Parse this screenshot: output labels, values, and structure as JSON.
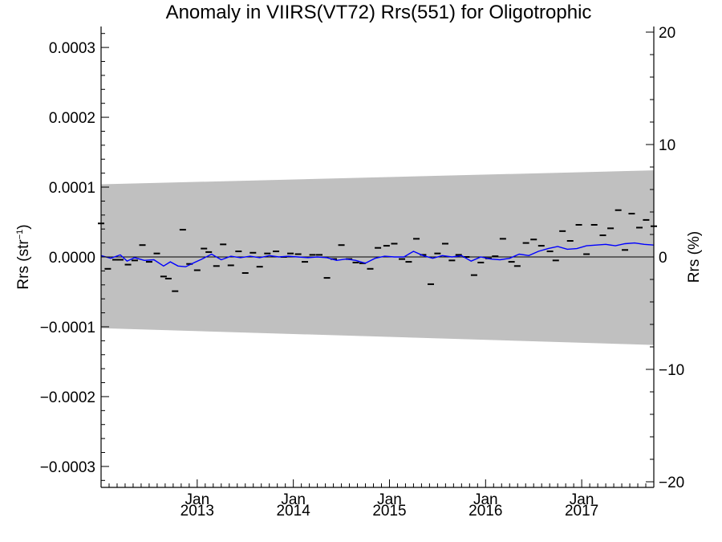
{
  "chart_data": {
    "type": "scatter",
    "title": "Anomaly in VIIRS(VT72) Rrs(551) for Oligotrophic",
    "ylabel_left": {
      "text": "Rrs (str",
      "sup": "−1",
      "close": ")"
    },
    "ylabel_right": "Rrs (%)",
    "xlim": [
      2012.0,
      2017.75
    ],
    "ylim_left": [
      -0.00033,
      0.00033
    ],
    "ylim_right": [
      -20.5,
      20.5
    ],
    "left_ticks": [
      {
        "value": 0.0003,
        "label": "0.0003"
      },
      {
        "value": 0.0002,
        "label": "0.0002"
      },
      {
        "value": 0.0001,
        "label": "0.0001"
      },
      {
        "value": 0.0,
        "label": "0.0000"
      },
      {
        "value": -0.0001,
        "label": "−0.0001"
      },
      {
        "value": -0.0002,
        "label": "−0.0002"
      },
      {
        "value": -0.0003,
        "label": "−0.0003"
      }
    ],
    "right_ticks": [
      {
        "value": 20,
        "label": "20"
      },
      {
        "value": 10,
        "label": "10"
      },
      {
        "value": 0,
        "label": "0"
      },
      {
        "value": -10,
        "label": "−10"
      },
      {
        "value": -20,
        "label": "−20"
      }
    ],
    "x_ticks": [
      {
        "value": 2013.0,
        "month": "Jan",
        "year": "2013"
      },
      {
        "value": 2014.0,
        "month": "Jan",
        "year": "2014"
      },
      {
        "value": 2015.0,
        "month": "Jan",
        "year": "2015"
      },
      {
        "value": 2016.0,
        "month": "Jan",
        "year": "2016"
      },
      {
        "value": 2017.0,
        "month": "Jan",
        "year": "2017"
      }
    ],
    "band": {
      "x": [
        2012.0,
        2017.75
      ],
      "upper": [
        0.000104,
        0.000124
      ],
      "lower": [
        -0.000102,
        -0.000126
      ]
    },
    "band_color": "#c0c0c0",
    "line_color": "#0000ff",
    "zero_line": 0.0,
    "series": [
      {
        "kind": "points",
        "x": [
          2012.0,
          2012.07,
          2012.15,
          2012.2,
          2012.28,
          2012.35,
          2012.43,
          2012.5,
          2012.58,
          2012.65,
          2012.7,
          2012.77,
          2012.85,
          2012.92,
          2013.0,
          2013.07,
          2013.12,
          2013.2,
          2013.27,
          2013.35,
          2013.43,
          2013.5,
          2013.58,
          2013.65,
          2013.73,
          2013.82,
          2013.9,
          2013.97,
          2014.05,
          2014.12,
          2014.2,
          2014.27,
          2014.35,
          2014.42,
          2014.5,
          2014.58,
          2014.65,
          2014.72,
          2014.8,
          2014.88,
          2014.97,
          2015.05,
          2015.13,
          2015.2,
          2015.28,
          2015.35,
          2015.43,
          2015.5,
          2015.58,
          2015.65,
          2015.72,
          2015.8,
          2015.88,
          2015.95,
          2016.03,
          2016.1,
          2016.18,
          2016.27,
          2016.33,
          2016.42,
          2016.5,
          2016.58,
          2016.67,
          2016.73,
          2016.8,
          2016.88,
          2016.97,
          2017.05,
          2017.13,
          2017.22,
          2017.3,
          2017.38,
          2017.45,
          2017.52,
          2017.6,
          2017.67,
          2017.75
        ],
        "y": [
          4.8e-05,
          -1.7e-05,
          -4e-06,
          -4e-06,
          -1.1e-05,
          -5e-06,
          1.7e-05,
          -7e-06,
          5e-06,
          -2.8e-05,
          -3.1e-05,
          -4.9e-05,
          3.9e-05,
          -1e-05,
          -1.9e-05,
          1.2e-05,
          7e-06,
          -1.3e-05,
          1.8e-05,
          -1.2e-05,
          8e-06,
          -2.3e-05,
          6e-06,
          -1.4e-05,
          5e-06,
          8e-06,
          0.0,
          5e-06,
          4e-06,
          -7e-06,
          3e-06,
          3e-06,
          -3e-05,
          -3e-06,
          1.7e-05,
          -3e-06,
          -8e-06,
          -9e-06,
          -1.7e-05,
          1.3e-05,
          1.6e-05,
          1.9e-05,
          -3e-06,
          -7e-06,
          2.6e-05,
          3e-06,
          -3.9e-05,
          5e-06,
          1.9e-05,
          -5e-06,
          3e-06,
          0.0,
          -2.6e-05,
          -8e-06,
          -2e-06,
          1e-06,
          2.6e-05,
          -7e-06,
          -1.3e-05,
          2e-05,
          2.5e-05,
          1.6e-05,
          8e-06,
          -5e-06,
          3.7e-05,
          2.3e-05,
          4.6e-05,
          4e-06,
          4.6e-05,
          3.1e-05,
          4.1e-05,
          6.7e-05,
          1e-05,
          6.2e-05,
          4.2e-05,
          5.3e-05,
          4.4e-05
        ]
      },
      {
        "kind": "line",
        "x": [
          2012.0,
          2012.1,
          2012.2,
          2012.27,
          2012.35,
          2012.45,
          2012.55,
          2012.65,
          2012.72,
          2012.8,
          2012.88,
          2012.97,
          2013.05,
          2013.15,
          2013.25,
          2013.35,
          2013.45,
          2013.55,
          2013.65,
          2013.75,
          2013.85,
          2013.95,
          2014.05,
          2014.15,
          2014.25,
          2014.35,
          2014.45,
          2014.55,
          2014.65,
          2014.75,
          2014.85,
          2014.95,
          2015.05,
          2015.15,
          2015.25,
          2015.35,
          2015.45,
          2015.55,
          2015.65,
          2015.75,
          2015.85,
          2015.95,
          2016.05,
          2016.15,
          2016.25,
          2016.35,
          2016.45,
          2016.55,
          2016.65,
          2016.75,
          2016.85,
          2016.95,
          2017.05,
          2017.15,
          2017.25,
          2017.35,
          2017.45,
          2017.55,
          2017.65,
          2017.75
        ],
        "y": [
          2e-06,
          -2e-06,
          3e-06,
          -6e-06,
          -1e-06,
          -5e-06,
          -4e-06,
          -1.3e-05,
          -7e-06,
          -1.3e-05,
          -1.4e-05,
          -8e-06,
          -3e-06,
          4e-06,
          -4e-06,
          1e-06,
          -1e-06,
          1e-06,
          -1e-06,
          2e-06,
          0.0,
          1e-06,
          0.0,
          -1e-06,
          0.0,
          -1e-06,
          -5e-06,
          -3e-06,
          -5e-06,
          -9e-06,
          -2e-06,
          1e-06,
          0.0,
          0.0,
          8e-06,
          2e-06,
          -2e-06,
          2e-06,
          0.0,
          2e-06,
          -6e-06,
          0.0,
          -3e-06,
          -4e-06,
          -2e-06,
          4e-06,
          2e-06,
          8e-06,
          1.2e-05,
          1.5e-05,
          1.1e-05,
          1.2e-05,
          1.6e-05,
          1.7e-05,
          1.8e-05,
          1.6e-05,
          1.9e-05,
          2e-05,
          1.8e-05,
          1.7e-05
        ]
      }
    ]
  }
}
